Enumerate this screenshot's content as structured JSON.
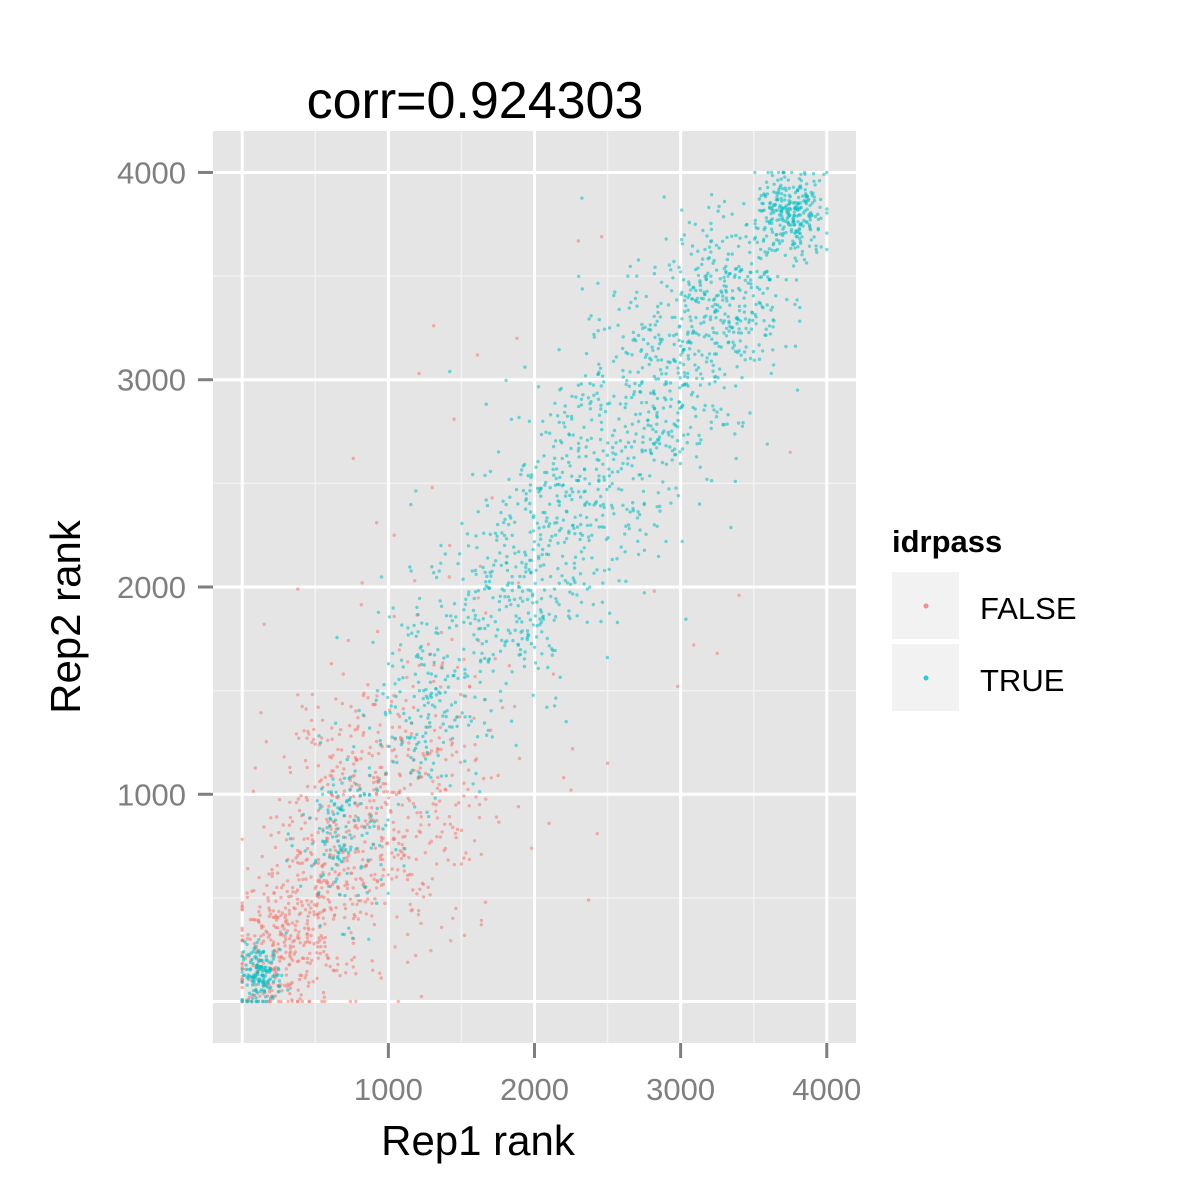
{
  "chart_data": {
    "type": "scatter",
    "title": "corr=0.924303",
    "xlabel": "Rep1 rank",
    "ylabel": "Rep2 rank",
    "xlim": [
      -200,
      4200
    ],
    "ylim": [
      -200,
      4200
    ],
    "x_ticks": [
      1000,
      2000,
      3000,
      4000
    ],
    "x_tick_labels": [
      "1000",
      "2000",
      "3000",
      "4000"
    ],
    "y_ticks": [
      1000,
      2000,
      3000,
      4000
    ],
    "y_tick_labels": [
      "1000",
      "2000",
      "3000",
      "4000"
    ],
    "grid": true,
    "background": "#e5e5e5",
    "legend": {
      "title": "idrpass",
      "placement": "right",
      "entries": [
        "FALSE",
        "TRUE"
      ]
    },
    "series": [
      {
        "name": "FALSE",
        "color": "#f8766d",
        "points": [
          [
            520,
            1420
          ],
          [
            150,
            1820
          ],
          [
            380,
            1990
          ],
          [
            760,
            2620
          ],
          [
            1180,
            2030
          ],
          [
            1310,
            3260
          ],
          [
            1610,
            3120
          ],
          [
            1880,
            3200
          ],
          [
            2300,
            3670
          ],
          [
            2460,
            3690
          ],
          [
            1210,
            3030
          ],
          [
            1450,
            2810
          ],
          [
            1710,
            2430
          ],
          [
            1040,
            2250
          ],
          [
            920,
            2310
          ],
          [
            1300,
            2480
          ],
          [
            610,
            1630
          ],
          [
            380,
            1480
          ],
          [
            1890,
            2020
          ],
          [
            2130,
            1580
          ],
          [
            2260,
            1220
          ],
          [
            2430,
            810
          ],
          [
            2370,
            490
          ],
          [
            2500,
            1150
          ],
          [
            2820,
            1980
          ],
          [
            2980,
            1520
          ],
          [
            3090,
            1720
          ],
          [
            3400,
            1960
          ],
          [
            3750,
            2650
          ],
          [
            2200,
            1080
          ],
          [
            1890,
            940
          ],
          [
            1740,
            890
          ],
          [
            820,
            2020
          ],
          [
            640,
            1460
          ],
          [
            1420,
            2200
          ],
          [
            1630,
            2100
          ],
          [
            2100,
            860
          ],
          [
            1980,
            740
          ],
          [
            2250,
            1020
          ],
          [
            3250,
            1680
          ]
        ],
        "clusters": [
          {
            "cx": 250,
            "cy": 250,
            "sx": 180,
            "sy": 180,
            "n": 260
          },
          {
            "cx": 550,
            "cy": 550,
            "sx": 230,
            "sy": 230,
            "n": 260
          },
          {
            "cx": 950,
            "cy": 950,
            "sx": 300,
            "sy": 280,
            "n": 220
          },
          {
            "cx": 1250,
            "cy": 1300,
            "sx": 260,
            "sy": 320,
            "n": 110
          },
          {
            "cx": 650,
            "cy": 1100,
            "sx": 250,
            "sy": 200,
            "n": 60
          },
          {
            "cx": 1100,
            "cy": 600,
            "sx": 250,
            "sy": 220,
            "n": 70
          }
        ]
      },
      {
        "name": "TRUE",
        "color": "#00bfc4",
        "points": [
          [
            0,
            0
          ],
          [
            4000,
            4000
          ],
          [
            3980,
            3990
          ],
          [
            3950,
            3960
          ],
          [
            3920,
            3940
          ],
          [
            3900,
            3890
          ],
          [
            3860,
            3850
          ],
          [
            3800,
            3830
          ],
          [
            3770,
            3780
          ],
          [
            3720,
            3710
          ],
          [
            50,
            40
          ],
          [
            80,
            90
          ],
          [
            120,
            100
          ],
          [
            160,
            150
          ],
          [
            200,
            190
          ],
          [
            260,
            250
          ],
          [
            300,
            330
          ],
          [
            2700,
            3500
          ],
          [
            2870,
            3470
          ],
          [
            3000,
            3520
          ],
          [
            2900,
            2220
          ],
          [
            3130,
            2400
          ],
          [
            3380,
            2620
          ],
          [
            3800,
            2950
          ],
          [
            3720,
            3160
          ],
          [
            3420,
            3010
          ],
          [
            1580,
            1050
          ],
          [
            1600,
            1100
          ],
          [
            2820,
            2300
          ],
          [
            2620,
            2170
          ],
          [
            3300,
            3860
          ],
          [
            3100,
            3750
          ]
        ],
        "clusters": [
          {
            "cx": 130,
            "cy": 130,
            "sx": 70,
            "sy": 70,
            "n": 160
          },
          {
            "cx": 700,
            "cy": 800,
            "sx": 150,
            "sy": 200,
            "n": 160
          },
          {
            "cx": 1250,
            "cy": 1450,
            "sx": 200,
            "sy": 240,
            "n": 180
          },
          {
            "cx": 1800,
            "cy": 1950,
            "sx": 250,
            "sy": 280,
            "n": 280
          },
          {
            "cx": 2300,
            "cy": 2450,
            "sx": 260,
            "sy": 280,
            "n": 300
          },
          {
            "cx": 2800,
            "cy": 2950,
            "sx": 240,
            "sy": 260,
            "n": 320
          },
          {
            "cx": 3300,
            "cy": 3400,
            "sx": 200,
            "sy": 200,
            "n": 320
          },
          {
            "cx": 3750,
            "cy": 3780,
            "sx": 120,
            "sy": 110,
            "n": 280
          }
        ]
      }
    ]
  }
}
